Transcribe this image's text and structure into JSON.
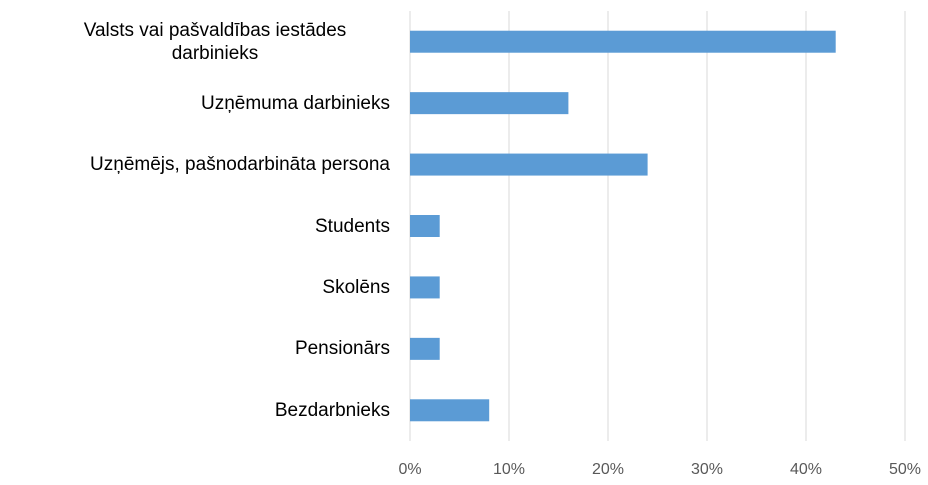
{
  "chart_data": {
    "type": "barh",
    "categories": [
      "Valsts vai pašvaldības iestādes darbinieks",
      "Uzņēmuma darbinieks",
      "Uzņēmējs, pašnodarbināta persona",
      "Students",
      "Skolēns",
      "Pensionārs",
      "Bezdarbnieks"
    ],
    "values": [
      43,
      16,
      24,
      3,
      3,
      3,
      8
    ],
    "color": "#5b9bd5",
    "xlim": [
      0,
      50
    ],
    "xticks": [
      {
        "value": 0,
        "label": "0%"
      },
      {
        "value": 10,
        "label": "10%"
      },
      {
        "value": 20,
        "label": "20%"
      },
      {
        "value": 30,
        "label": "30%"
      },
      {
        "value": 40,
        "label": "40%"
      },
      {
        "value": 50,
        "label": "50%"
      }
    ],
    "grid": true
  }
}
